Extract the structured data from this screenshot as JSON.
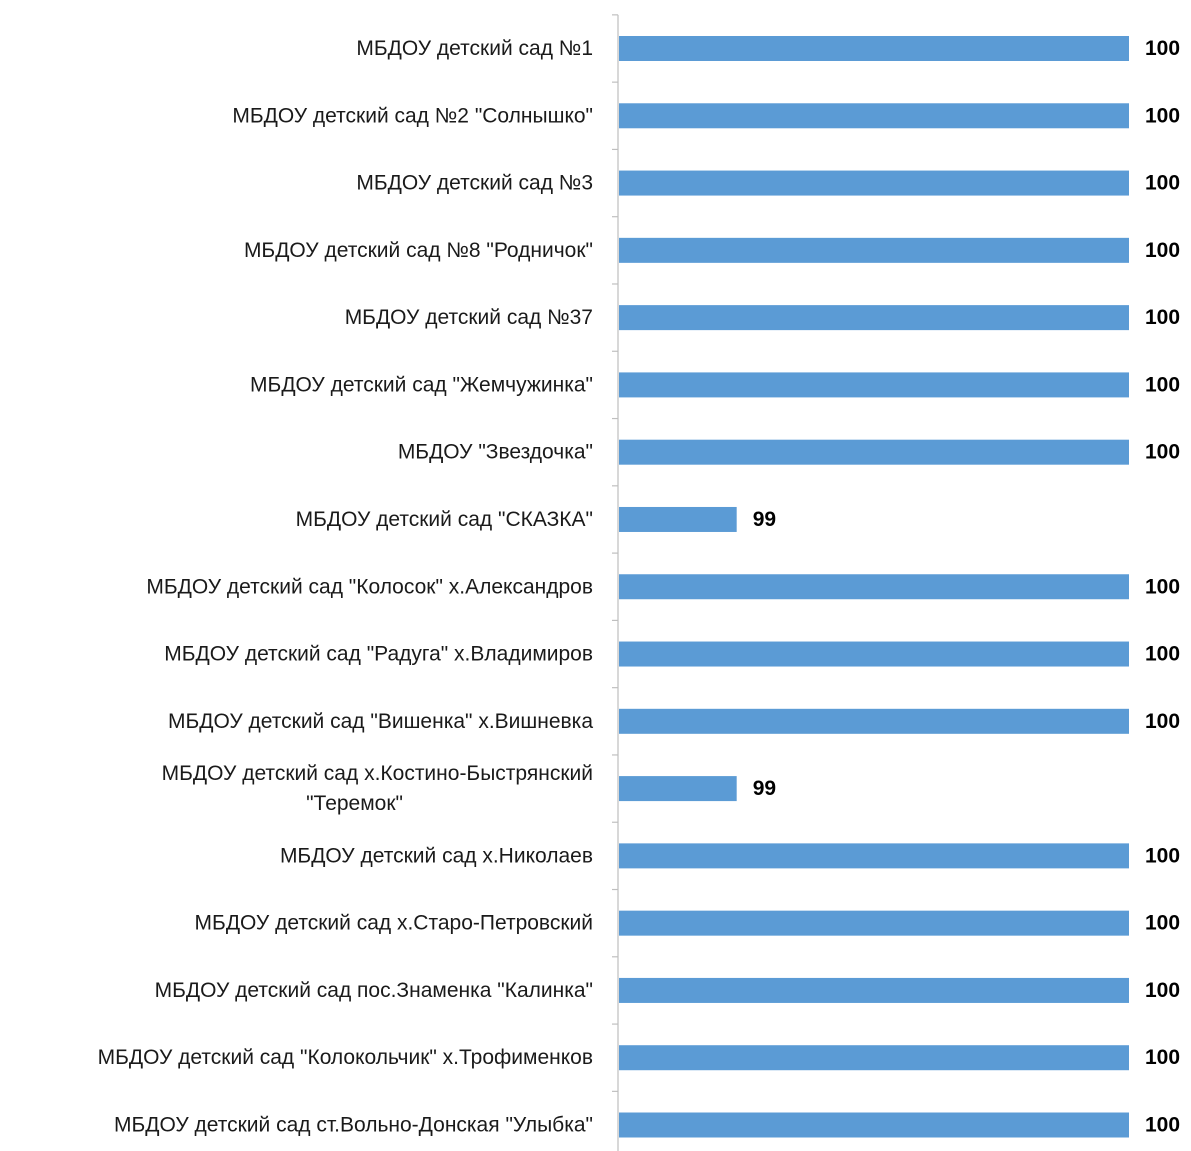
{
  "colors": {
    "bar": "#5B9BD5",
    "axis": "#BFBFBF",
    "text": "#1a1a1a"
  },
  "chart_data": {
    "type": "bar",
    "orientation": "horizontal",
    "title": "",
    "xlabel": "",
    "ylabel": "",
    "xlim": [
      98.7,
      100
    ],
    "grid": false,
    "legend": "none",
    "categories": [
      [
        "МБДОУ детский сад №1"
      ],
      [
        "МБДОУ детский сад №2 \"Солнышко\""
      ],
      [
        "МБДОУ детский сад №3"
      ],
      [
        "МБДОУ детский сад №8 \"Родничок\""
      ],
      [
        "МБДОУ детский сад №37"
      ],
      [
        "МБДОУ детский сад \"Жемчужинка\""
      ],
      [
        "МБДОУ \"Звездочка\""
      ],
      [
        "МБДОУ детский сад \"СКАЗКА\""
      ],
      [
        "МБДОУ детский сад \"Колосок\" х.Александров"
      ],
      [
        "МБДОУ детский сад \"Радуга\" х.Владимиров"
      ],
      [
        "МБДОУ детский сад \"Вишенка\"  х.Вишневка"
      ],
      [
        "МБДОУ детский сад х.Костино-Быстрянский",
        "\"Теремок\""
      ],
      [
        "МБДОУ детский сад х.Николаев"
      ],
      [
        "МБДОУ детский сад х.Старо-Петровский"
      ],
      [
        "МБДОУ детский сад пос.Знаменка \"Калинка\""
      ],
      [
        "МБДОУ детский сад \"Колокольчик\" х.Трофименков"
      ],
      [
        "МБДОУ детский сад ст.Вольно-Донская \"Улыбка\""
      ]
    ],
    "values": [
      100,
      100,
      100,
      100,
      100,
      100,
      100,
      99,
      100,
      100,
      100,
      99,
      100,
      100,
      100,
      100,
      100
    ]
  }
}
